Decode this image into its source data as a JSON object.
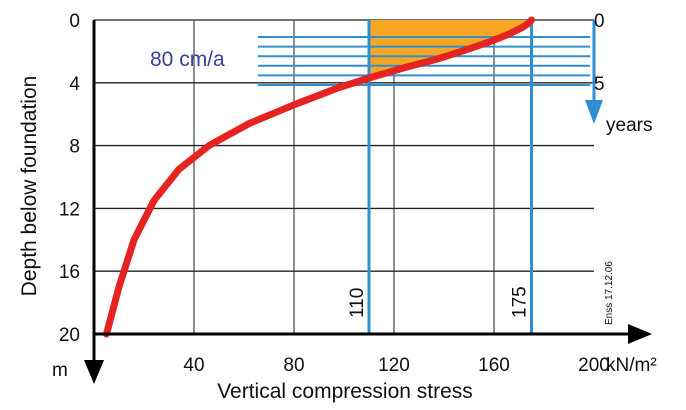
{
  "chart_data": {
    "type": "line",
    "xlabel": "Vertical compression stress",
    "x_unit": "kN/m²",
    "ylabel": "Depth below foundation",
    "y_unit": "m",
    "xlim": [
      0,
      200
    ],
    "ylim": [
      0,
      20
    ],
    "x_ticks": [
      "40",
      "80",
      "120",
      "160",
      "200"
    ],
    "y_ticks": [
      "0",
      "4",
      "8",
      "12",
      "16",
      "20"
    ],
    "grid": true,
    "series": [
      {
        "color": "#e52421",
        "x": [
          5,
          10,
          16,
          24,
          34,
          46,
          62,
          80,
          98,
          112,
          125,
          137,
          148,
          158,
          166,
          171,
          173.5,
          175
        ],
        "y": [
          20,
          17,
          14,
          11.5,
          9.5,
          8,
          6.6,
          5.4,
          4.3,
          3.6,
          3.0,
          2.5,
          1.95,
          1.4,
          0.9,
          0.5,
          0.25,
          0
        ]
      }
    ],
    "reference_lines": [
      {
        "x": 110,
        "label": "110",
        "color": "#2f8fd0"
      },
      {
        "x": 175,
        "label": "175",
        "color": "#2f8fd0"
      }
    ],
    "shaded_region": {
      "x_from": 110,
      "x_to": 175,
      "depth_from": 0,
      "depth_to": 3.6,
      "color": "#f5a623"
    },
    "time_axis": {
      "label_start": "0",
      "label_end": "5",
      "unit": "years",
      "lines": 6,
      "color": "#2f8fd0"
    },
    "rate_label": "80 cm/a",
    "footnote": "Enss 17.12.06"
  }
}
